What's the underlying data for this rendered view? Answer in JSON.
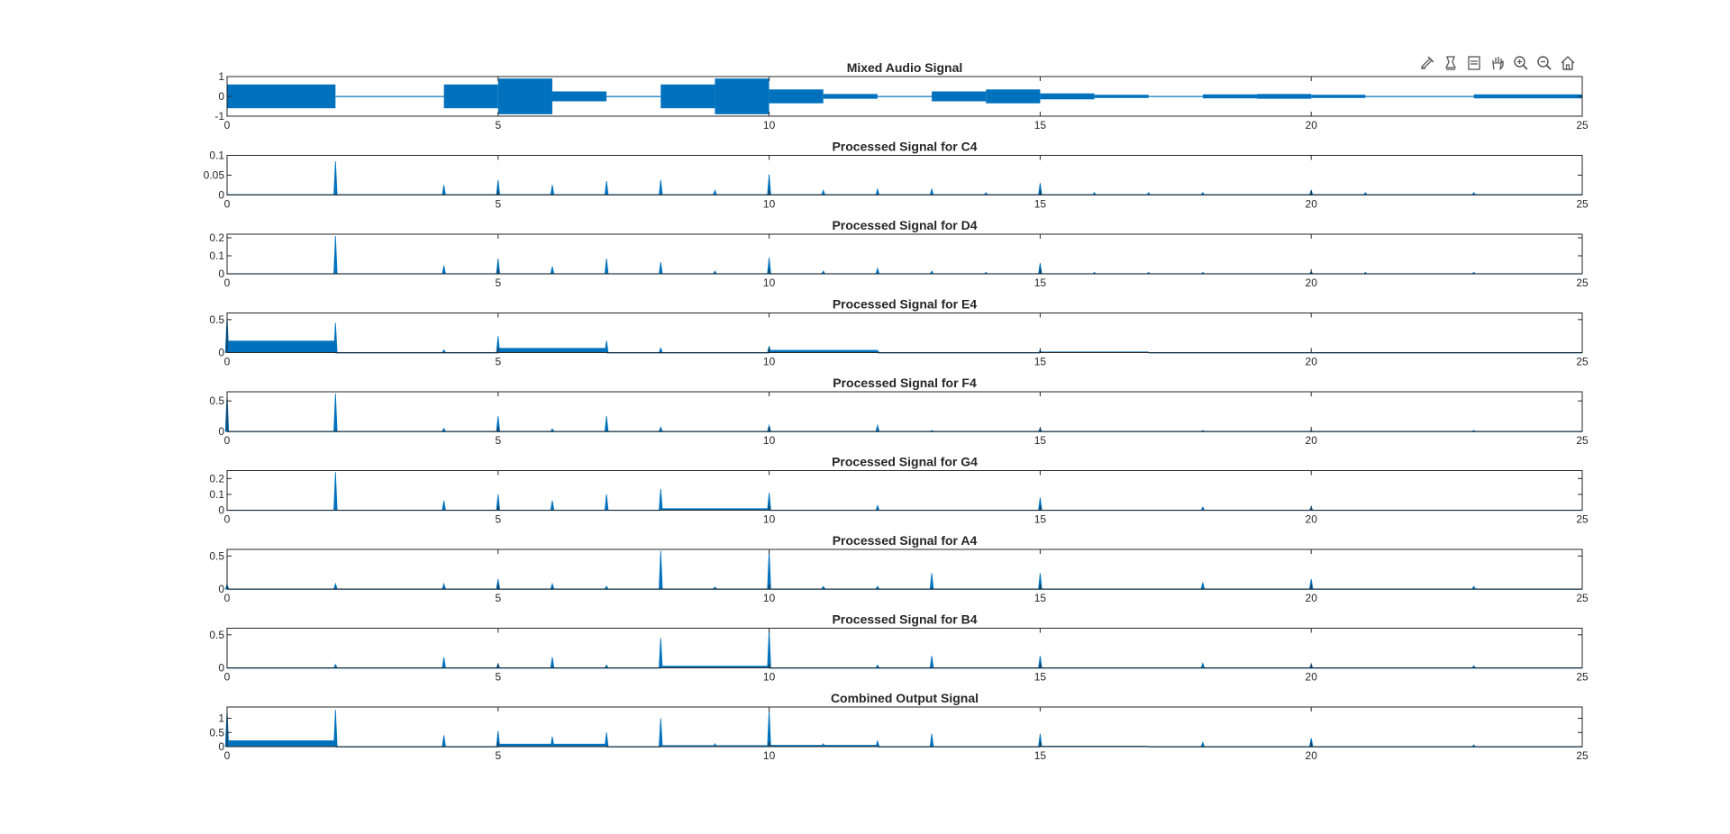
{
  "toolbar": {
    "buttons": [
      {
        "name": "brush-edit-button",
        "icon": "brush-edit-icon"
      },
      {
        "name": "data-tips-button",
        "icon": "data-tips-icon"
      },
      {
        "name": "restore-view-button",
        "icon": "restore-view-icon"
      },
      {
        "name": "pan-button",
        "icon": "hand-pan-icon"
      },
      {
        "name": "zoom-in-button",
        "icon": "zoom-in-icon"
      },
      {
        "name": "zoom-out-button",
        "icon": "zoom-out-icon"
      },
      {
        "name": "home-button",
        "icon": "home-icon"
      }
    ]
  },
  "colors": {
    "series": "#0072BD",
    "axis": "#262626",
    "text": "#262626"
  },
  "chart_data": [
    {
      "type": "line",
      "title": "Mixed Audio Signal",
      "xlim": [
        0,
        25
      ],
      "ylim": [
        -1,
        1
      ],
      "xticks": [
        0,
        5,
        10,
        15,
        20,
        25
      ],
      "yticks": [
        -1,
        0,
        1
      ],
      "ytick_labels": [
        "-1",
        "0",
        "1"
      ],
      "series": [
        {
          "kind": "envelope",
          "segments": [
            [
              0,
              2,
              0.6
            ],
            [
              2,
              4,
              0.02
            ],
            [
              4,
              5,
              0.6
            ],
            [
              5,
              6,
              0.9
            ],
            [
              6,
              7,
              0.25
            ],
            [
              7,
              8,
              0.02
            ],
            [
              8,
              9,
              0.6
            ],
            [
              9,
              10,
              0.9
            ],
            [
              10,
              11,
              0.35
            ],
            [
              11,
              12,
              0.12
            ],
            [
              12,
              13,
              0.02
            ],
            [
              13,
              14,
              0.25
            ],
            [
              14,
              15,
              0.35
            ],
            [
              15,
              16,
              0.15
            ],
            [
              16,
              17,
              0.08
            ],
            [
              17,
              18,
              0.02
            ],
            [
              18,
              19,
              0.1
            ],
            [
              19,
              20,
              0.12
            ],
            [
              20,
              21,
              0.08
            ],
            [
              21,
              23,
              0.02
            ],
            [
              23,
              25,
              0.1
            ]
          ]
        }
      ]
    },
    {
      "type": "line",
      "title": "Processed Signal for C4",
      "xlim": [
        0,
        25
      ],
      "ylim": [
        0,
        0.1
      ],
      "xticks": [
        0,
        5,
        10,
        15,
        20,
        25
      ],
      "yticks": [
        0,
        0.05,
        0.1
      ],
      "ytick_labels": [
        "0",
        "0.05",
        "0.1"
      ],
      "series": [
        {
          "kind": "spikes",
          "spikes": [
            [
              2,
              0.085
            ],
            [
              4,
              0.025
            ],
            [
              5,
              0.038
            ],
            [
              6,
              0.025
            ],
            [
              7,
              0.035
            ],
            [
              8,
              0.038
            ],
            [
              9,
              0.012
            ],
            [
              10,
              0.052
            ],
            [
              11,
              0.012
            ],
            [
              12,
              0.015
            ],
            [
              13,
              0.015
            ],
            [
              14,
              0.006
            ],
            [
              15,
              0.03
            ],
            [
              16,
              0.006
            ],
            [
              17,
              0.006
            ],
            [
              18,
              0.006
            ],
            [
              20,
              0.012
            ],
            [
              21,
              0.006
            ],
            [
              23,
              0.006
            ]
          ],
          "segments": [
            [
              0,
              25,
              0.002
            ]
          ]
        }
      ]
    },
    {
      "type": "line",
      "title": "Processed Signal for D4",
      "xlim": [
        0,
        25
      ],
      "ylim": [
        0,
        0.22
      ],
      "xticks": [
        0,
        5,
        10,
        15,
        20,
        25
      ],
      "yticks": [
        0,
        0.1,
        0.2
      ],
      "ytick_labels": [
        "0",
        "0.1",
        "0.2"
      ],
      "series": [
        {
          "kind": "spikes",
          "spikes": [
            [
              2,
              0.21
            ],
            [
              4,
              0.045
            ],
            [
              5,
              0.085
            ],
            [
              6,
              0.04
            ],
            [
              7,
              0.085
            ],
            [
              8,
              0.065
            ],
            [
              9,
              0.015
            ],
            [
              10,
              0.09
            ],
            [
              11,
              0.015
            ],
            [
              12,
              0.03
            ],
            [
              13,
              0.015
            ],
            [
              14,
              0.008
            ],
            [
              15,
              0.06
            ],
            [
              16,
              0.008
            ],
            [
              17,
              0.008
            ],
            [
              18,
              0.008
            ],
            [
              20,
              0.012
            ],
            [
              21,
              0.008
            ],
            [
              23,
              0.008
            ]
          ],
          "segments": [
            [
              0,
              25,
              0.003
            ]
          ]
        }
      ]
    },
    {
      "type": "line",
      "title": "Processed Signal for E4",
      "xlim": [
        0,
        25
      ],
      "ylim": [
        0,
        0.6
      ],
      "xticks": [
        0,
        5,
        10,
        15,
        20,
        25
      ],
      "yticks": [
        0,
        0.5
      ],
      "ytick_labels": [
        "0",
        "0.5"
      ],
      "series": [
        {
          "kind": "spikes",
          "spikes": [
            [
              0,
              0.55
            ],
            [
              2,
              0.45
            ],
            [
              4,
              0.04
            ],
            [
              5,
              0.25
            ],
            [
              7,
              0.18
            ],
            [
              8,
              0.07
            ],
            [
              10,
              0.1
            ],
            [
              12,
              0.03
            ],
            [
              15,
              0.03
            ]
          ],
          "segments": [
            [
              0,
              2,
              0.18
            ],
            [
              5,
              7,
              0.07
            ],
            [
              10,
              12,
              0.04
            ],
            [
              15,
              17,
              0.015
            ],
            [
              2,
              5,
              0.004
            ],
            [
              7,
              10,
              0.004
            ],
            [
              12,
              15,
              0.004
            ],
            [
              17,
              25,
              0.004
            ]
          ]
        }
      ]
    },
    {
      "type": "line",
      "title": "Processed Signal for F4",
      "xlim": [
        0,
        25
      ],
      "ylim": [
        0,
        0.65
      ],
      "xticks": [
        0,
        5,
        10,
        15,
        20,
        25
      ],
      "yticks": [
        0,
        0.5
      ],
      "ytick_labels": [
        "0",
        "0.5"
      ],
      "series": [
        {
          "kind": "spikes",
          "spikes": [
            [
              0,
              0.6
            ],
            [
              2,
              0.62
            ],
            [
              4,
              0.05
            ],
            [
              5,
              0.25
            ],
            [
              6,
              0.04
            ],
            [
              7,
              0.25
            ],
            [
              8,
              0.07
            ],
            [
              10,
              0.1
            ],
            [
              12,
              0.1
            ],
            [
              13,
              0.015
            ],
            [
              15,
              0.05
            ],
            [
              18,
              0.015
            ],
            [
              20,
              0.015
            ],
            [
              23,
              0.015
            ]
          ],
          "segments": [
            [
              0,
              25,
              0.005
            ]
          ]
        }
      ]
    },
    {
      "type": "line",
      "title": "Processed Signal for G4",
      "xlim": [
        0,
        25
      ],
      "ylim": [
        0,
        0.25
      ],
      "xticks": [
        0,
        5,
        10,
        15,
        20,
        25
      ],
      "yticks": [
        0,
        0.1,
        0.2
      ],
      "ytick_labels": [
        "0",
        "0.1",
        "0.2"
      ],
      "series": [
        {
          "kind": "spikes",
          "spikes": [
            [
              2,
              0.24
            ],
            [
              4,
              0.06
            ],
            [
              5,
              0.1
            ],
            [
              6,
              0.06
            ],
            [
              7,
              0.1
            ],
            [
              8,
              0.135
            ],
            [
              10,
              0.11
            ],
            [
              12,
              0.03
            ],
            [
              15,
              0.08
            ],
            [
              18,
              0.02
            ],
            [
              20,
              0.02
            ]
          ],
          "segments": [
            [
              8,
              10,
              0.012
            ],
            [
              0,
              8,
              0.003
            ],
            [
              10,
              25,
              0.003
            ]
          ]
        }
      ]
    },
    {
      "type": "line",
      "title": "Processed Signal for A4",
      "xlim": [
        0,
        25
      ],
      "ylim": [
        0,
        0.6
      ],
      "xticks": [
        0,
        5,
        10,
        15,
        20,
        25
      ],
      "yticks": [
        0,
        0.5
      ],
      "ytick_labels": [
        "0",
        "0.5"
      ],
      "series": [
        {
          "kind": "spikes",
          "spikes": [
            [
              0,
              0.07
            ],
            [
              2,
              0.08
            ],
            [
              4,
              0.08
            ],
            [
              5,
              0.15
            ],
            [
              6,
              0.08
            ],
            [
              7,
              0.04
            ],
            [
              8,
              0.58
            ],
            [
              9,
              0.03
            ],
            [
              10,
              0.58
            ],
            [
              11,
              0.04
            ],
            [
              12,
              0.04
            ],
            [
              13,
              0.24
            ],
            [
              15,
              0.24
            ],
            [
              18,
              0.1
            ],
            [
              20,
              0.15
            ],
            [
              23,
              0.04
            ]
          ],
          "segments": [
            [
              0,
              25,
              0.005
            ]
          ]
        }
      ]
    },
    {
      "type": "line",
      "title": "Processed Signal for B4",
      "xlim": [
        0,
        25
      ],
      "ylim": [
        0,
        0.6
      ],
      "xticks": [
        0,
        5,
        10,
        15,
        20,
        25
      ],
      "yticks": [
        0,
        0.5
      ],
      "ytick_labels": [
        "0",
        "0.5"
      ],
      "series": [
        {
          "kind": "spikes",
          "spikes": [
            [
              2,
              0.05
            ],
            [
              4,
              0.16
            ],
            [
              5,
              0.06
            ],
            [
              6,
              0.16
            ],
            [
              7,
              0.04
            ],
            [
              8,
              0.45
            ],
            [
              10,
              0.58
            ],
            [
              12,
              0.04
            ],
            [
              13,
              0.18
            ],
            [
              15,
              0.18
            ],
            [
              18,
              0.07
            ],
            [
              20,
              0.05
            ],
            [
              23,
              0.03
            ]
          ],
          "segments": [
            [
              8,
              10,
              0.03
            ],
            [
              0,
              8,
              0.004
            ],
            [
              10,
              25,
              0.004
            ]
          ]
        }
      ]
    },
    {
      "type": "line",
      "title": "Combined Output Signal",
      "xlim": [
        0,
        25
      ],
      "ylim": [
        0,
        1.4
      ],
      "xticks": [
        0,
        5,
        10,
        15,
        20,
        25
      ],
      "yticks": [
        0,
        0.5,
        1
      ],
      "ytick_labels": [
        "0",
        "0.5",
        "1"
      ],
      "series": [
        {
          "kind": "spikes",
          "spikes": [
            [
              0,
              1.3
            ],
            [
              2,
              1.3
            ],
            [
              4,
              0.4
            ],
            [
              5,
              0.55
            ],
            [
              6,
              0.35
            ],
            [
              7,
              0.5
            ],
            [
              8,
              1.0
            ],
            [
              9,
              0.1
            ],
            [
              10,
              1.3
            ],
            [
              11,
              0.1
            ],
            [
              12,
              0.2
            ],
            [
              13,
              0.45
            ],
            [
              15,
              0.45
            ],
            [
              18,
              0.15
            ],
            [
              20,
              0.3
            ],
            [
              23,
              0.06
            ]
          ],
          "segments": [
            [
              0,
              2,
              0.22
            ],
            [
              5,
              7,
              0.1
            ],
            [
              8,
              10,
              0.05
            ],
            [
              10,
              12,
              0.06
            ],
            [
              15,
              17,
              0.03
            ],
            [
              2,
              5,
              0.01
            ],
            [
              7,
              8,
              0.01
            ],
            [
              12,
              15,
              0.01
            ],
            [
              17,
              25,
              0.01
            ]
          ]
        }
      ]
    }
  ]
}
